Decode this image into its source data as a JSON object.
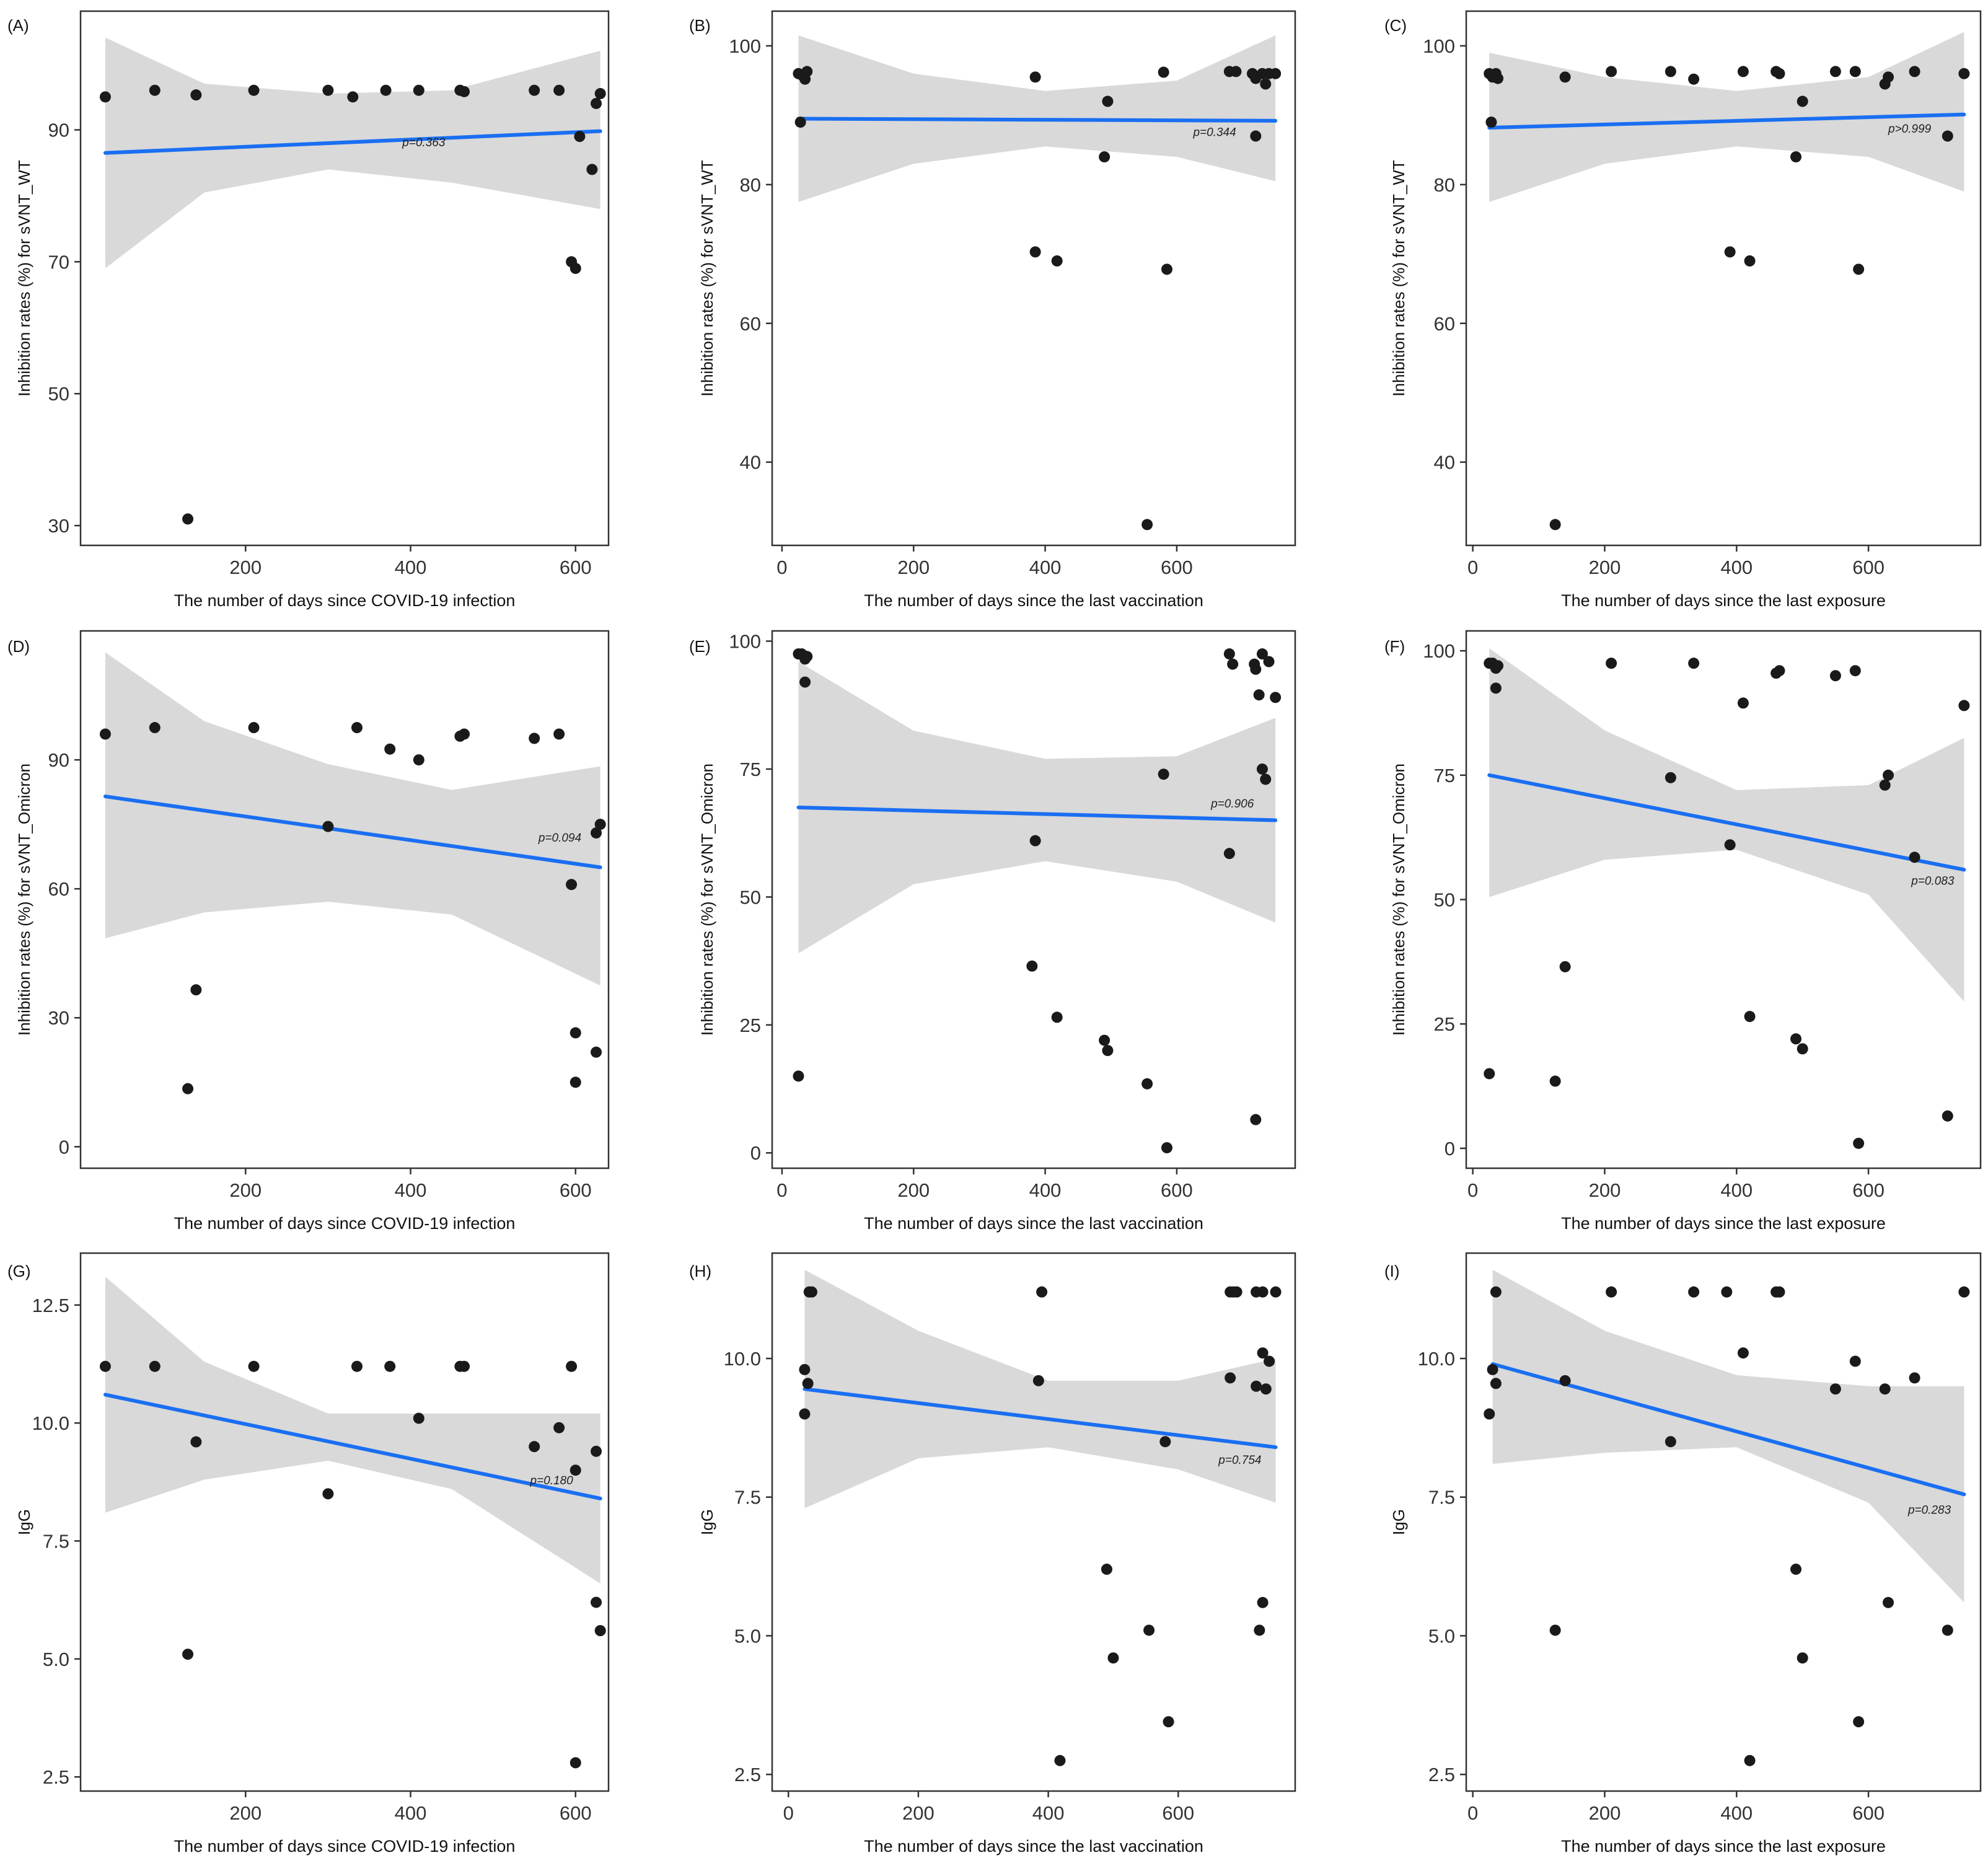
{
  "figure": {
    "description_colors": {
      "band": "#d9d9d9",
      "line": "#1a6ff2",
      "point": "#1a1a1a",
      "frame": "#333333"
    }
  },
  "chart_data": [
    {
      "id": "A",
      "panel_label": "(A)",
      "type": "scatter",
      "title": "",
      "xlabel": "The number of days since COVID-19 infection",
      "ylabel": "Inhibition rates (%) for sVNT_WT",
      "xlim": [
        0,
        640
      ],
      "ylim": [
        27,
        108
      ],
      "xticks": [
        200,
        400,
        600
      ],
      "yticks": [
        30,
        50,
        70,
        90
      ],
      "points": [
        [
          30,
          95
        ],
        [
          90,
          96
        ],
        [
          140,
          95.3
        ],
        [
          210,
          96
        ],
        [
          300,
          96
        ],
        [
          330,
          95
        ],
        [
          370,
          96
        ],
        [
          410,
          96
        ],
        [
          460,
          96
        ],
        [
          465,
          95.8
        ],
        [
          550,
          96
        ],
        [
          580,
          96
        ],
        [
          630,
          95.5
        ],
        [
          625,
          94
        ],
        [
          605,
          89
        ],
        [
          620,
          84
        ],
        [
          595,
          70
        ],
        [
          600,
          69
        ],
        [
          130,
          31
        ]
      ],
      "fit": {
        "x0": 30,
        "y0": 86.5,
        "x1": 630,
        "y1": 89.8
      },
      "band": {
        "x": [
          30,
          150,
          300,
          450,
          630
        ],
        "lower": [
          69,
          80.5,
          84,
          82,
          78
        ],
        "upper": [
          104,
          97,
          95.5,
          96,
          102
        ]
      },
      "pvalue": "p=0.363",
      "pvalue_pos": [
        390,
        87.5
      ]
    },
    {
      "id": "B",
      "panel_label": "(B)",
      "type": "scatter",
      "title": "",
      "xlabel": "The number of days since the last vaccination",
      "ylabel": "Inhibition rates (%) for sVNT_WT",
      "xlim": [
        -15,
        780
      ],
      "ylim": [
        28,
        105
      ],
      "xticks": [
        0,
        200,
        400,
        600
      ],
      "yticks": [
        40,
        60,
        80,
        100
      ],
      "points": [
        [
          25,
          96
        ],
        [
          30,
          95.8
        ],
        [
          35,
          95.2
        ],
        [
          38,
          96.3
        ],
        [
          28,
          89
        ],
        [
          385,
          95.5
        ],
        [
          490,
          84
        ],
        [
          495,
          92
        ],
        [
          580,
          96.2
        ],
        [
          680,
          96.3
        ],
        [
          690,
          96.3
        ],
        [
          715,
          96
        ],
        [
          720,
          95.3
        ],
        [
          730,
          96
        ],
        [
          735,
          94.5
        ],
        [
          740,
          96
        ],
        [
          750,
          96
        ],
        [
          720,
          87
        ],
        [
          385,
          70.3
        ],
        [
          418,
          69
        ],
        [
          585,
          67.8
        ],
        [
          555,
          31
        ]
      ],
      "fit": {
        "x0": 25,
        "y0": 89.5,
        "x1": 750,
        "y1": 89.2
      },
      "band": {
        "x": [
          25,
          200,
          400,
          600,
          750
        ],
        "lower": [
          77.5,
          83,
          85.5,
          84,
          80.5
        ],
        "upper": [
          101.5,
          96,
          93.5,
          95,
          101.5
        ]
      },
      "pvalue": "p=0.344",
      "pvalue_pos": [
        625,
        87
      ]
    },
    {
      "id": "C",
      "panel_label": "(C)",
      "type": "scatter",
      "title": "",
      "xlabel": "The number of days since the last exposure",
      "ylabel": "Inhibition rates (%) for sVNT_WT",
      "xlim": [
        -10,
        770
      ],
      "ylim": [
        28,
        105
      ],
      "xticks": [
        0,
        200,
        400,
        600
      ],
      "yticks": [
        40,
        60,
        80,
        100
      ],
      "points": [
        [
          25,
          96
        ],
        [
          30,
          95.5
        ],
        [
          35,
          96
        ],
        [
          38,
          95.3
        ],
        [
          28,
          89
        ],
        [
          140,
          95.5
        ],
        [
          210,
          96.3
        ],
        [
          300,
          96.3
        ],
        [
          335,
          95.2
        ],
        [
          410,
          96.3
        ],
        [
          460,
          96.3
        ],
        [
          465,
          96
        ],
        [
          500,
          92
        ],
        [
          490,
          84
        ],
        [
          550,
          96.3
        ],
        [
          580,
          96.3
        ],
        [
          625,
          94.5
        ],
        [
          630,
          95.5
        ],
        [
          670,
          96.3
        ],
        [
          720,
          87
        ],
        [
          745,
          96
        ],
        [
          390,
          70.3
        ],
        [
          420,
          69
        ],
        [
          585,
          67.8
        ],
        [
          125,
          31
        ]
      ],
      "fit": {
        "x0": 25,
        "y0": 88.2,
        "x1": 745,
        "y1": 90.1
      },
      "band": {
        "x": [
          25,
          200,
          400,
          600,
          745
        ],
        "lower": [
          77.5,
          83,
          85.5,
          84,
          79
        ],
        "upper": [
          99,
          95.5,
          93.5,
          95.5,
          102
        ]
      },
      "pvalue": "p>0.999",
      "pvalue_pos": [
        630,
        87.5
      ]
    },
    {
      "id": "D",
      "panel_label": "(D)",
      "type": "scatter",
      "title": "",
      "xlabel": "The number of days since COVID-19 infection",
      "ylabel": "Inhibition rates (%) for sVNT_Omicron",
      "xlim": [
        0,
        640
      ],
      "ylim": [
        -5,
        120
      ],
      "xticks": [
        200,
        400,
        600
      ],
      "yticks": [
        0,
        30,
        60,
        90
      ],
      "points": [
        [
          30,
          96
        ],
        [
          90,
          97.5
        ],
        [
          210,
          97.5
        ],
        [
          335,
          97.5
        ],
        [
          375,
          92.5
        ],
        [
          410,
          90
        ],
        [
          460,
          95.5
        ],
        [
          465,
          96
        ],
        [
          550,
          95
        ],
        [
          580,
          96
        ],
        [
          300,
          74.5
        ],
        [
          630,
          75
        ],
        [
          625,
          73
        ],
        [
          595,
          61
        ],
        [
          140,
          36.5
        ],
        [
          130,
          13.5
        ],
        [
          600,
          26.5
        ],
        [
          625,
          22
        ],
        [
          600,
          15
        ]
      ],
      "fit": {
        "x0": 30,
        "y0": 81.5,
        "x1": 630,
        "y1": 65
      },
      "band": {
        "x": [
          30,
          150,
          300,
          450,
          630
        ],
        "lower": [
          48.5,
          54.5,
          57,
          54,
          37.5
        ],
        "upper": [
          115,
          99,
          89,
          83,
          88.5
        ]
      },
      "pvalue": "p=0.094",
      "pvalue_pos": [
        555,
        71
      ]
    },
    {
      "id": "E",
      "panel_label": "(E)",
      "type": "scatter",
      "title": "",
      "xlabel": "The number of days since the last vaccination",
      "ylabel": "Inhibition rates (%) for sVNT_Omicron",
      "xlim": [
        -15,
        780
      ],
      "ylim": [
        -3,
        102
      ],
      "xticks": [
        0,
        200,
        400,
        600
      ],
      "yticks": [
        0,
        25,
        50,
        75,
        100
      ],
      "points": [
        [
          25,
          97.5
        ],
        [
          30,
          97.5
        ],
        [
          35,
          96.5
        ],
        [
          38,
          97
        ],
        [
          35,
          92
        ],
        [
          680,
          97.5
        ],
        [
          685,
          95.5
        ],
        [
          718,
          95.5
        ],
        [
          720,
          94.5
        ],
        [
          730,
          97.5
        ],
        [
          740,
          96
        ],
        [
          750,
          89
        ],
        [
          725,
          89.5
        ],
        [
          580,
          74
        ],
        [
          730,
          75
        ],
        [
          735,
          73
        ],
        [
          385,
          61
        ],
        [
          680,
          58.5
        ],
        [
          380,
          36.5
        ],
        [
          418,
          26.5
        ],
        [
          490,
          22
        ],
        [
          495,
          20
        ],
        [
          555,
          13.5
        ],
        [
          720,
          6.5
        ],
        [
          585,
          1
        ],
        [
          25,
          15
        ]
      ],
      "fit": {
        "x0": 25,
        "y0": 67.5,
        "x1": 750,
        "y1": 65
      },
      "band": {
        "x": [
          25,
          200,
          400,
          600,
          750
        ],
        "lower": [
          39,
          52.5,
          57,
          53,
          45
        ],
        "upper": [
          96,
          82.5,
          77,
          77.5,
          85
        ]
      },
      "pvalue": "p=0.906",
      "pvalue_pos": [
        652,
        67.5
      ]
    },
    {
      "id": "F",
      "panel_label": "(F)",
      "type": "scatter",
      "title": "",
      "xlabel": "The number of days since the last exposure",
      "ylabel": "Inhibition rates (%) for sVNT_Omicron",
      "xlim": [
        -10,
        770
      ],
      "ylim": [
        -4,
        104
      ],
      "xticks": [
        0,
        200,
        400,
        600
      ],
      "yticks": [
        0,
        25,
        50,
        75,
        100
      ],
      "points": [
        [
          25,
          97.5
        ],
        [
          30,
          97.5
        ],
        [
          35,
          96.5
        ],
        [
          38,
          97
        ],
        [
          35,
          92.5
        ],
        [
          210,
          97.5
        ],
        [
          335,
          97.5
        ],
        [
          410,
          89.5
        ],
        [
          460,
          95.5
        ],
        [
          465,
          96
        ],
        [
          550,
          95
        ],
        [
          580,
          96
        ],
        [
          745,
          89
        ],
        [
          300,
          74.5
        ],
        [
          625,
          73
        ],
        [
          630,
          75
        ],
        [
          390,
          61
        ],
        [
          670,
          58.5
        ],
        [
          140,
          36.5
        ],
        [
          420,
          26.5
        ],
        [
          490,
          22
        ],
        [
          500,
          20
        ],
        [
          125,
          13.5
        ],
        [
          720,
          6.5
        ],
        [
          585,
          1
        ],
        [
          25,
          15
        ]
      ],
      "fit": {
        "x0": 25,
        "y0": 75,
        "x1": 745,
        "y1": 56
      },
      "band": {
        "x": [
          25,
          200,
          400,
          600,
          745
        ],
        "lower": [
          50.5,
          58,
          60,
          51,
          29.5
        ],
        "upper": [
          100.5,
          84,
          72,
          73,
          82.5
        ]
      },
      "pvalue": "p=0.083",
      "pvalue_pos": [
        665,
        53
      ]
    },
    {
      "id": "G",
      "panel_label": "(G)",
      "type": "scatter",
      "title": "",
      "xlabel": "The number of days since COVID-19 infection",
      "ylabel": "IgG",
      "xlim": [
        0,
        640
      ],
      "ylim": [
        2.2,
        13.6
      ],
      "xticks": [
        200,
        400,
        600
      ],
      "yticks": [
        2.5,
        5.0,
        7.5,
        10.0,
        12.5
      ],
      "points": [
        [
          30,
          11.2
        ],
        [
          90,
          11.2
        ],
        [
          210,
          11.2
        ],
        [
          335,
          11.2
        ],
        [
          375,
          11.2
        ],
        [
          460,
          11.2
        ],
        [
          465,
          11.2
        ],
        [
          595,
          11.2
        ],
        [
          410,
          10.1
        ],
        [
          140,
          9.6
        ],
        [
          300,
          8.5
        ],
        [
          550,
          9.5
        ],
        [
          580,
          9.9
        ],
        [
          600,
          9
        ],
        [
          625,
          9.4
        ],
        [
          625,
          6.2
        ],
        [
          630,
          5.6
        ],
        [
          130,
          5.1
        ],
        [
          600,
          2.8
        ]
      ],
      "fit": {
        "x0": 30,
        "y0": 10.6,
        "x1": 630,
        "y1": 8.4
      },
      "band": {
        "x": [
          30,
          150,
          300,
          450,
          630
        ],
        "lower": [
          8.1,
          8.8,
          9.2,
          8.6,
          6.6
        ],
        "upper": [
          13.1,
          11.3,
          10.2,
          10.2,
          10.2
        ]
      },
      "pvalue": "p=0.180",
      "pvalue_pos": [
        545,
        8.7
      ]
    },
    {
      "id": "H",
      "panel_label": "(H)",
      "type": "scatter",
      "title": "",
      "xlabel": "The number of days since the last vaccination",
      "ylabel": "IgG",
      "xlim": [
        -25,
        780
      ],
      "ylim": [
        2.2,
        11.9
      ],
      "xticks": [
        0,
        200,
        400,
        600
      ],
      "yticks": [
        2.5,
        5.0,
        7.5,
        10.0
      ],
      "points": [
        [
          25,
          9.8
        ],
        [
          30,
          9.55
        ],
        [
          32,
          11.2
        ],
        [
          36,
          11.2
        ],
        [
          25,
          9
        ],
        [
          385,
          9.6
        ],
        [
          390,
          11.2
        ],
        [
          680,
          11.2
        ],
        [
          685,
          11.2
        ],
        [
          690,
          11.2
        ],
        [
          720,
          11.2
        ],
        [
          730,
          11.2
        ],
        [
          750,
          11.2
        ],
        [
          680,
          9.65
        ],
        [
          730,
          10.1
        ],
        [
          740,
          9.95
        ],
        [
          720,
          9.5
        ],
        [
          735,
          9.45
        ],
        [
          580,
          8.5
        ],
        [
          490,
          6.2
        ],
        [
          500,
          4.6
        ],
        [
          555,
          5.1
        ],
        [
          725,
          5.1
        ],
        [
          730,
          5.6
        ],
        [
          585,
          3.45
        ],
        [
          418,
          2.75
        ]
      ],
      "fit": {
        "x0": 25,
        "y0": 9.45,
        "x1": 750,
        "y1": 8.4
      },
      "band": {
        "x": [
          25,
          200,
          400,
          600,
          750
        ],
        "lower": [
          7.3,
          8.2,
          8.4,
          8.0,
          7.4
        ],
        "upper": [
          11.6,
          10.5,
          9.6,
          9.6,
          10.0
        ]
      },
      "pvalue": "p=0.754",
      "pvalue_pos": [
        662,
        8.1
      ]
    },
    {
      "id": "I",
      "panel_label": "(I)",
      "type": "scatter",
      "title": "",
      "xlabel": "The number of days since the last exposure",
      "ylabel": "IgG",
      "xlim": [
        -10,
        770
      ],
      "ylim": [
        2.2,
        11.9
      ],
      "xticks": [
        0,
        200,
        400,
        600
      ],
      "yticks": [
        2.5,
        5.0,
        7.5,
        10.0
      ],
      "points": [
        [
          25,
          9
        ],
        [
          30,
          9.8
        ],
        [
          35,
          9.55
        ],
        [
          35,
          11.2
        ],
        [
          210,
          11.2
        ],
        [
          335,
          11.2
        ],
        [
          385,
          11.2
        ],
        [
          460,
          11.2
        ],
        [
          465,
          11.2
        ],
        [
          745,
          11.2
        ],
        [
          410,
          10.1
        ],
        [
          140,
          9.6
        ],
        [
          300,
          8.5
        ],
        [
          550,
          9.45
        ],
        [
          580,
          9.95
        ],
        [
          625,
          9.45
        ],
        [
          670,
          9.65
        ],
        [
          490,
          6.2
        ],
        [
          500,
          4.6
        ],
        [
          630,
          5.6
        ],
        [
          720,
          5.1
        ],
        [
          125,
          5.1
        ],
        [
          585,
          3.45
        ],
        [
          420,
          2.75
        ]
      ],
      "fit": {
        "x0": 30,
        "y0": 9.9,
        "x1": 745,
        "y1": 7.55
      },
      "band": {
        "x": [
          30,
          200,
          400,
          600,
          745
        ],
        "lower": [
          8.1,
          8.3,
          8.4,
          7.4,
          5.6
        ],
        "upper": [
          11.6,
          10.5,
          9.7,
          9.5,
          9.5
        ]
      },
      "pvalue": "p=0.283",
      "pvalue_pos": [
        660,
        7.2
      ]
    }
  ]
}
